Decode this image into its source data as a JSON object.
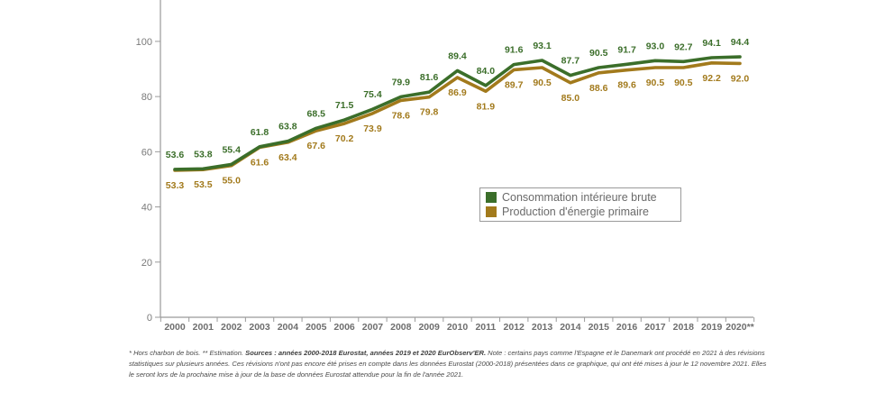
{
  "chart_data": {
    "type": "line",
    "x": [
      "2000",
      "2001",
      "2002",
      "2003",
      "2004",
      "2005",
      "2006",
      "2007",
      "2008",
      "2009",
      "2010",
      "2011",
      "2012",
      "2013",
      "2014",
      "2015",
      "2016",
      "2017",
      "2018",
      "2019",
      "2020**"
    ],
    "yticks": [
      0,
      20,
      40,
      60,
      80,
      100
    ],
    "ylim": [
      0,
      115
    ],
    "grid": false,
    "legend_position": "center-right",
    "series": [
      {
        "name": "Consommation intérieure brute",
        "color": "#3b6e2a",
        "values": [
          53.6,
          53.8,
          55.4,
          61.8,
          63.8,
          68.5,
          71.5,
          75.4,
          79.9,
          81.6,
          89.4,
          84.0,
          91.6,
          93.1,
          87.7,
          90.5,
          91.7,
          93.0,
          92.7,
          94.1,
          94.4
        ],
        "labels": [
          "53.6",
          "53.8",
          "55.4",
          "61.8",
          "63.8",
          "68.5",
          "71.5",
          "75.4",
          "79.9",
          "81.6",
          "89.4",
          "84.0",
          "91.6",
          "93.1",
          "87.7",
          "90.5",
          "91.7",
          "93.0",
          "92.7",
          "94.1",
          "94.4"
        ]
      },
      {
        "name": "Production d'énergie primaire",
        "color": "#a27a1c",
        "values": [
          53.3,
          53.5,
          55.0,
          61.6,
          63.4,
          67.6,
          70.2,
          73.9,
          78.6,
          79.8,
          86.9,
          81.9,
          89.7,
          90.5,
          85.0,
          88.6,
          89.6,
          90.5,
          90.5,
          92.2,
          92.0
        ],
        "labels": [
          "53.3",
          "53.5",
          "55.0",
          "61.6",
          "63.4",
          "67.6",
          "70.2",
          "73.9",
          "78.6",
          "79.8",
          "86.9",
          "81.9",
          "89.7",
          "90.5",
          "85.0",
          "88.6",
          "89.6",
          "90.5",
          "90.5",
          "92.2",
          "92.0"
        ]
      }
    ]
  },
  "footnote": {
    "part1": "* Hors charbon de bois. ** Estimation. ",
    "sources": "Sources : années 2000-2018 Eurostat, années 2019 et 2020 EurObserv'ER.",
    "part2": " Note : certains pays comme l'Espagne et le Danemark ont procédé en 2021 à des révisions statistiques sur plusieurs années. Ces révisions n'ont pas encore été prises en compte dans les données Eurostat (2000-2018) présentées dans ce graphique, qui ont été mises à jour le 12 novembre 2021. Elles le seront lors de la prochaine mise à jour de la base de données Eurostat attendue pour la fin de l'année 2021."
  }
}
